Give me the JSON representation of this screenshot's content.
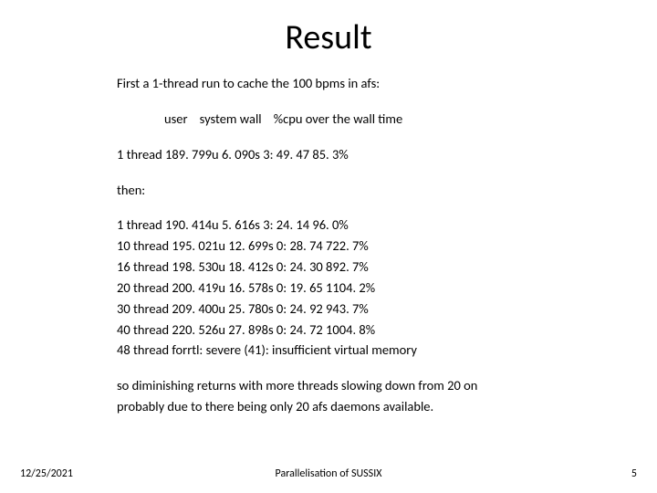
{
  "title": "Result",
  "intro": "First a 1-thread run to cache the 100 bpms in afs:",
  "header_line": "user    system wall    %cpu over the wall time",
  "first_run": "1  thread 189. 799u 6. 090s 3: 49. 47 85. 3%",
  "then_label": "then:",
  "runs": [
    "1  thread 190. 414u 5. 616s 3: 24. 14 96. 0%",
    "10 thread 195. 021u 12. 699s 0: 28. 74 722. 7%",
    "16 thread 198. 530u 18. 412s 0: 24. 30 892. 7%",
    "20 thread 200. 419u 16. 578s 0: 19. 65 1104. 2%",
    "30 thread 209. 400u 25. 780s 0: 24. 92 943. 7%",
    "40 thread 220. 526u 27. 898s 0: 24. 72 1004. 8%",
    "48 thread forrtl: severe (41): insufficient virtual memory"
  ],
  "concl1": "so diminishing returns with more threads slowing down from 20 on",
  "concl2": "probably due to there being only 20 afs daemons available.",
  "footer": {
    "date": "12/25/2021",
    "center": "Parallelisation of SUSSIX",
    "page": "5"
  },
  "style": {
    "bg": "#ffffff",
    "text": "#000000",
    "title_fontsize": 38,
    "body_fontsize": 14.5,
    "footer_fontsize": 12
  }
}
